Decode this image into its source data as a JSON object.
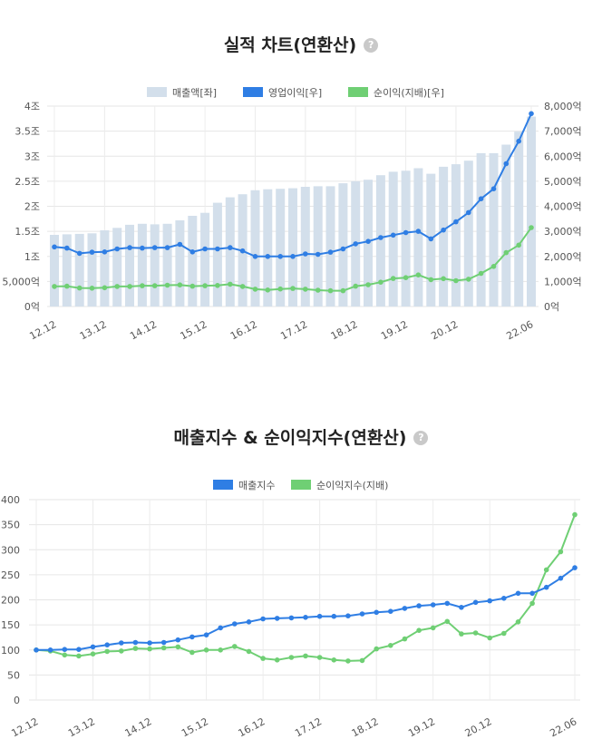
{
  "chart_data": [
    {
      "type": "bar+line",
      "title": "실적 차트(연환산)",
      "help_icon": "question-icon",
      "legend": [
        {
          "name": "매출액[좌]",
          "kind": "bar",
          "color": "#d3dfeb"
        },
        {
          "name": "영업이익[우]",
          "kind": "line",
          "color": "#2f7ee4"
        },
        {
          "name": "순이익(지배)[우]",
          "kind": "line",
          "color": "#6fcf74"
        }
      ],
      "legend_position": "top",
      "grid": true,
      "x_tick_labels": [
        "12.12",
        "13.12",
        "14.12",
        "15.12",
        "16.12",
        "17.12",
        "18.12",
        "19.12",
        "20.12",
        "22.06"
      ],
      "left_axis": {
        "ticks": [
          "0억",
          "5,000억",
          "1조",
          "1.5조",
          "2조",
          "2.5조",
          "3조",
          "3.5조",
          "4조"
        ],
        "range": [
          0,
          40000
        ],
        "unit": "억"
      },
      "right_axis": {
        "ticks": [
          "0억",
          "1,000억",
          "2,000억",
          "3,000억",
          "4,000억",
          "5,000억",
          "6,000억",
          "7,000억",
          "8,000억"
        ],
        "range": [
          0,
          8000
        ],
        "unit": "억"
      },
      "series": [
        {
          "name": "매출액[좌]",
          "axis": "left",
          "values": [
            14300,
            14400,
            14500,
            14600,
            15200,
            15700,
            16300,
            16500,
            16400,
            16500,
            17200,
            18100,
            18700,
            20700,
            21800,
            22400,
            23200,
            23400,
            23500,
            23600,
            23900,
            24000,
            24000,
            24600,
            25000,
            25300,
            26200,
            26900,
            27100,
            27600,
            26500,
            27900,
            28400,
            29100,
            30600,
            30600,
            32300,
            34900,
            37900
          ]
        },
        {
          "name": "영업이익[우]",
          "axis": "right",
          "values": [
            2380,
            2330,
            2120,
            2170,
            2180,
            2300,
            2350,
            2330,
            2350,
            2350,
            2480,
            2180,
            2300,
            2300,
            2350,
            2220,
            2000,
            2000,
            2000,
            2000,
            2100,
            2080,
            2170,
            2300,
            2500,
            2600,
            2750,
            2850,
            2950,
            3000,
            2700,
            3050,
            3380,
            3750,
            4300,
            4700,
            5700,
            6600,
            7700
          ]
        },
        {
          "name": "순이익(지배)[우]",
          "axis": "right",
          "values": [
            800,
            810,
            740,
            730,
            750,
            800,
            800,
            830,
            830,
            850,
            860,
            810,
            830,
            840,
            890,
            800,
            690,
            660,
            700,
            720,
            690,
            650,
            630,
            630,
            810,
            870,
            970,
            1120,
            1150,
            1260,
            1070,
            1110,
            1030,
            1090,
            1320,
            1600,
            2150,
            2450,
            3150
          ]
        }
      ]
    },
    {
      "type": "line",
      "title": "매출지수 & 순이익지수(연환산)",
      "help_icon": "question-icon",
      "legend": [
        {
          "name": "매출지수",
          "color": "#2f7ee4"
        },
        {
          "name": "순이익지수(지배)",
          "color": "#6fcf74"
        }
      ],
      "legend_position": "top",
      "grid": true,
      "x_tick_labels": [
        "12.12",
        "13.12",
        "14.12",
        "15.12",
        "16.12",
        "17.12",
        "18.12",
        "19.12",
        "20.12",
        "22.06"
      ],
      "y_ticks": [
        "0",
        "50",
        "100",
        "150",
        "200",
        "250",
        "300",
        "350",
        "400"
      ],
      "ylim": [
        0,
        400
      ],
      "series": [
        {
          "name": "매출지수",
          "values": [
            100,
            100,
            101,
            101,
            106,
            110,
            114,
            115,
            114,
            115,
            120,
            126,
            130,
            144,
            152,
            156,
            162,
            163,
            164,
            165,
            167,
            167,
            168,
            172,
            175,
            177,
            183,
            188,
            190,
            193,
            185,
            195,
            198,
            203,
            213,
            213,
            225,
            243,
            264
          ]
        },
        {
          "name": "순이익지수(지배)",
          "values": [
            100,
            98,
            90,
            88,
            92,
            97,
            98,
            103,
            102,
            104,
            106,
            95,
            100,
            100,
            107,
            97,
            83,
            80,
            85,
            88,
            85,
            80,
            78,
            79,
            102,
            109,
            122,
            139,
            144,
            157,
            132,
            134,
            124,
            133,
            156,
            193,
            260,
            296,
            370
          ]
        }
      ]
    }
  ]
}
